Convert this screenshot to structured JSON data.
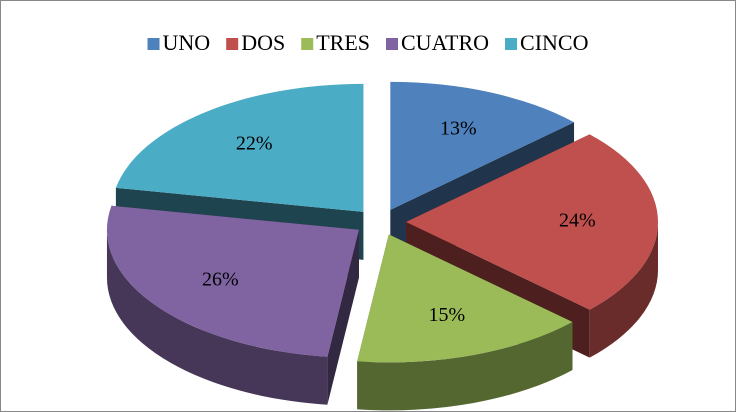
{
  "chart_data": {
    "type": "pie",
    "categories": [
      "UNO",
      "DOS",
      "TRES",
      "CUATRO",
      "CINCO"
    ],
    "values": [
      13,
      24,
      15,
      26,
      22
    ],
    "value_labels": [
      "13%",
      "24%",
      "15%",
      "26%",
      "22%"
    ],
    "colors": [
      "#4f81bd",
      "#c0504d",
      "#9bbb59",
      "#8064a2",
      "#4bacc6"
    ],
    "legend": "top"
  }
}
